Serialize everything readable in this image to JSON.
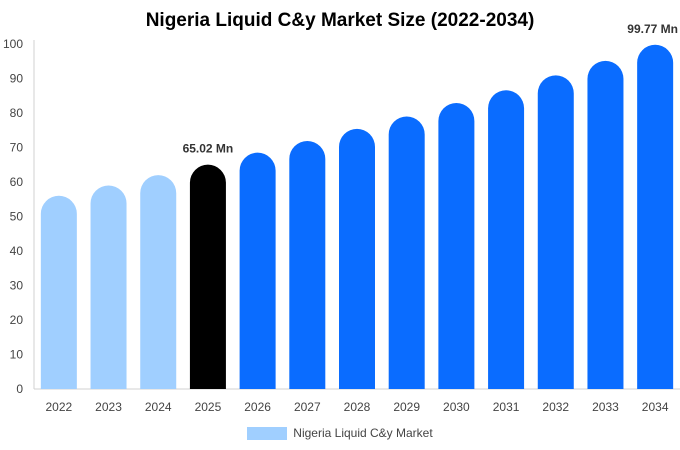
{
  "chart_data": {
    "type": "bar",
    "title": "Nigeria Liquid C&y Market Size (2022-2034)",
    "categories": [
      "2022",
      "2023",
      "2024",
      "2025",
      "2026",
      "2027",
      "2028",
      "2029",
      "2030",
      "2031",
      "2032",
      "2033",
      "2034"
    ],
    "series": [
      {
        "name": "Nigeria Liquid C&y Market",
        "values": [
          56.0,
          59.0,
          62.0,
          65.02,
          68.5,
          71.9,
          75.4,
          79.0,
          82.9,
          86.6,
          90.9,
          95.1,
          99.77
        ]
      }
    ],
    "ylim": [
      0,
      100
    ],
    "yticks": [
      0,
      10,
      20,
      30,
      40,
      50,
      60,
      70,
      80,
      90,
      100
    ],
    "xlabel": "",
    "ylabel": "",
    "data_labels": [
      {
        "category": "2025",
        "text": "65.02 Mn"
      },
      {
        "category": "2034",
        "text": "99.77 Mn"
      }
    ],
    "colors": {
      "historical": "#a0cfff",
      "current": "#000000",
      "forecast": "#0a6cff"
    },
    "historical_years": [
      "2022",
      "2023",
      "2024"
    ],
    "highlight_year": "2025",
    "legend_position": "bottom-center",
    "grid": false
  }
}
